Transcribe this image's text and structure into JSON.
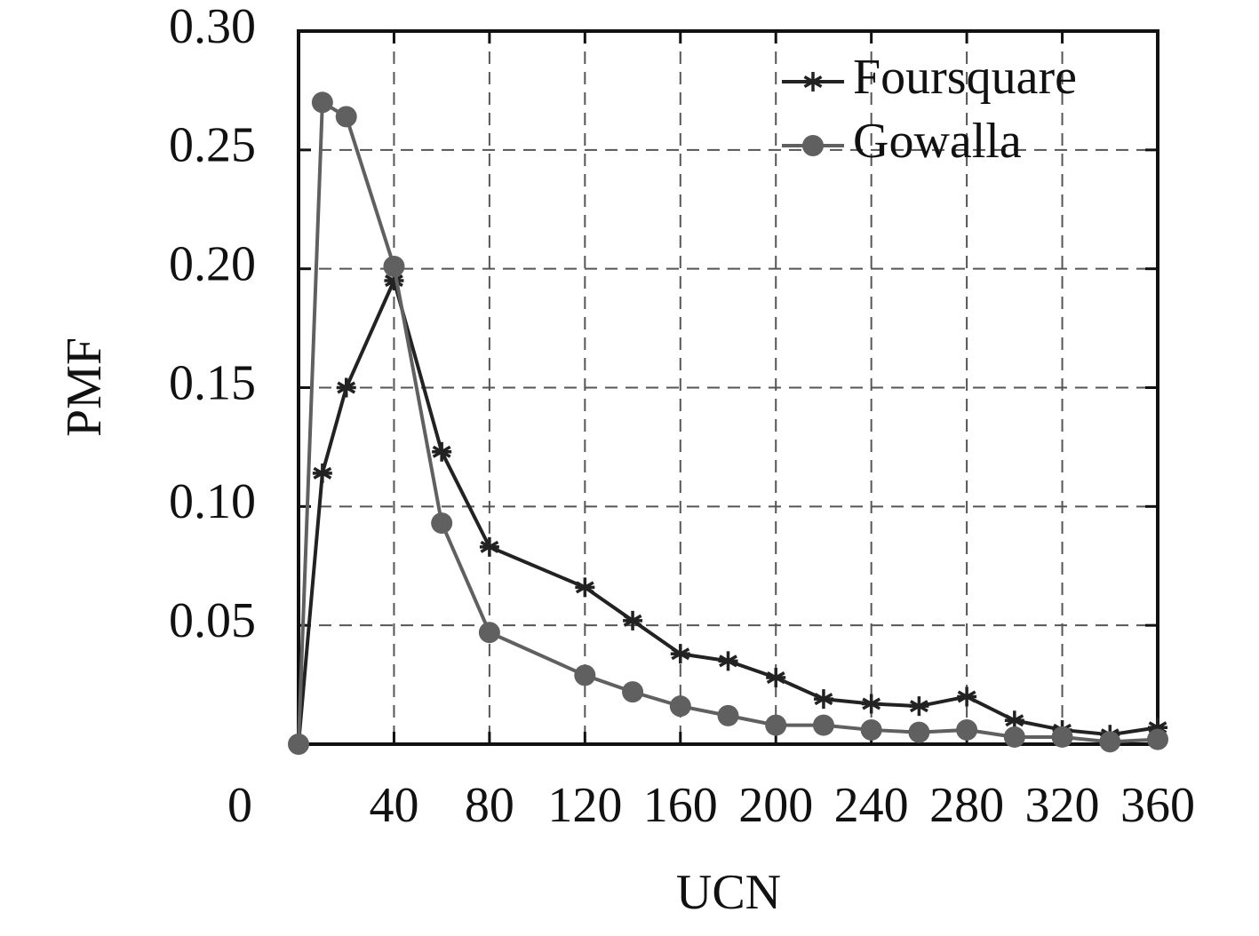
{
  "chart_data": {
    "type": "line",
    "xlabel": "UCN",
    "ylabel": "PMF",
    "x": [
      0,
      10,
      20,
      40,
      60,
      80,
      120,
      140,
      160,
      180,
      200,
      220,
      240,
      260,
      280,
      300,
      320,
      340,
      360
    ],
    "series": [
      {
        "name": "Foursquare",
        "color": "#222222",
        "marker": "asterisk",
        "values": [
          0,
          0.114,
          0.15,
          0.195,
          0.123,
          0.083,
          0.066,
          0.052,
          0.038,
          0.035,
          0.028,
          0.019,
          0.017,
          0.016,
          0.02,
          0.01,
          0.006,
          0.004,
          0.007
        ]
      },
      {
        "name": "Gowalla",
        "color": "#606060",
        "marker": "circle",
        "values": [
          0,
          0.27,
          0.264,
          0.201,
          0.093,
          0.047,
          0.029,
          0.022,
          0.016,
          0.012,
          0.008,
          0.008,
          0.006,
          0.005,
          0.006,
          0.003,
          0.003,
          0.001,
          0.002
        ]
      }
    ],
    "xlim": [
      0,
      360
    ],
    "xticks": [
      0,
      40,
      80,
      120,
      160,
      200,
      240,
      280,
      320,
      360
    ],
    "ylim": [
      0,
      0.3
    ],
    "yticks": [
      {
        "value": 0.05,
        "label": "0.05"
      },
      {
        "value": 0.1,
        "label": "0.10"
      },
      {
        "value": 0.15,
        "label": "0.15"
      },
      {
        "value": 0.2,
        "label": "0.20"
      },
      {
        "value": 0.25,
        "label": "0.25"
      },
      {
        "value": 0.3,
        "label": "0.30"
      }
    ],
    "grid": true,
    "legend": "upper right"
  }
}
